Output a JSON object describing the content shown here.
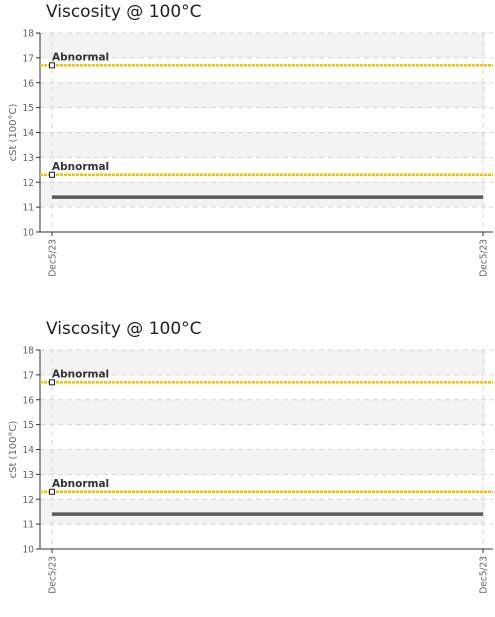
{
  "chart_data": [
    {
      "type": "line",
      "title": "Viscosity @ 100°C",
      "ylabel": "cSt (100°C)",
      "xlabel": "",
      "ylim": [
        10,
        18
      ],
      "yticks": [
        10,
        11,
        12,
        13,
        14,
        15,
        16,
        17,
        18
      ],
      "x_tick_labels": [
        "Dec5/23",
        "Dec5/23"
      ],
      "grid": true,
      "series": [
        {
          "values": [
            11.4,
            11.4
          ],
          "color": "#5a5a5a"
        }
      ],
      "threshold_lines": [
        {
          "label": "Abnormal",
          "value": 16.7,
          "color": "#f2c200"
        },
        {
          "label": "Abnormal",
          "value": 12.3,
          "color": "#f2c200"
        }
      ]
    },
    {
      "type": "line",
      "title": "Viscosity @ 100°C",
      "ylabel": "cSt (100°C)",
      "xlabel": "",
      "ylim": [
        10,
        18
      ],
      "yticks": [
        10,
        11,
        12,
        13,
        14,
        15,
        16,
        17,
        18
      ],
      "x_tick_labels": [
        "Dec5/23",
        "Dec5/23"
      ],
      "grid": true,
      "series": [
        {
          "values": [
            11.4,
            11.4
          ],
          "color": "#5a5a5a"
        }
      ],
      "threshold_lines": [
        {
          "label": "Abnormal",
          "value": 16.7,
          "color": "#f2c200"
        },
        {
          "label": "Abnormal",
          "value": 12.3,
          "color": "#f2c200"
        }
      ]
    }
  ]
}
